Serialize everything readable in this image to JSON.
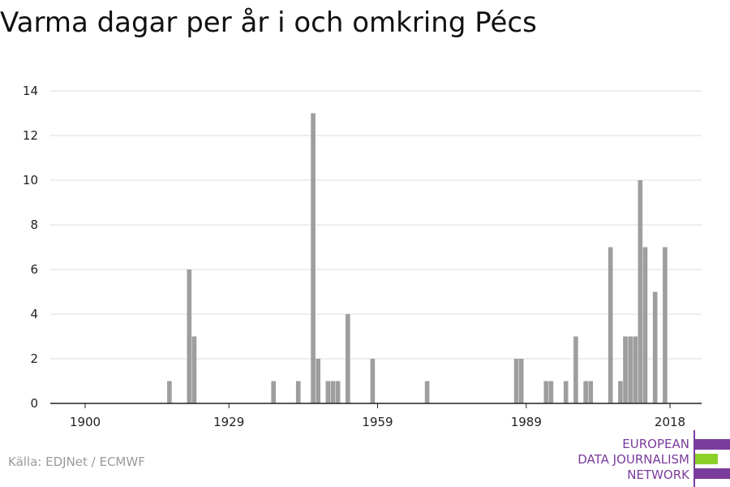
{
  "title": "Varma dagar per år i och omkring Pécs",
  "source": "Källa: EDJNet / ECMWF",
  "logo": {
    "lines": [
      "EUROPEAN",
      "DATA JOURNALISM",
      "NETWORK"
    ],
    "colors": {
      "primary": "#7a3c9c",
      "accent": "#8cd02a"
    }
  },
  "colors": {
    "bar": "#9e9e9e",
    "grid": "#dddddd",
    "axis": "#222222"
  },
  "chart_data": {
    "type": "bar",
    "title": "Varma dagar per år i och omkring Pécs",
    "xlabel": "",
    "ylabel": "",
    "x_tick_labels": [
      "1900",
      "1929",
      "1959",
      "1989",
      "2018"
    ],
    "y_ticks": [
      0,
      2,
      4,
      6,
      8,
      10,
      12,
      14
    ],
    "xlim": [
      1894,
      2024
    ],
    "ylim": [
      0,
      14
    ],
    "grid": true,
    "x": [
      1917,
      1921,
      1922,
      1938,
      1943,
      1946,
      1947,
      1949,
      1950,
      1951,
      1953,
      1958,
      1969,
      1987,
      1988,
      1993,
      1994,
      1997,
      1999,
      2001,
      2002,
      2006,
      2008,
      2009,
      2010,
      2011,
      2012,
      2013,
      2015,
      2017
    ],
    "values": [
      1,
      6,
      3,
      1,
      1,
      13,
      2,
      1,
      1,
      1,
      4,
      2,
      1,
      2,
      2,
      1,
      1,
      1,
      3,
      1,
      1,
      7,
      1,
      3,
      3,
      3,
      10,
      7,
      5,
      7
    ]
  }
}
